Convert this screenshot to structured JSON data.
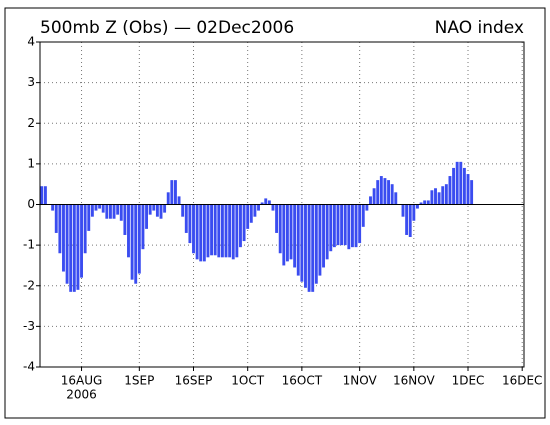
{
  "chart_data": {
    "type": "bar",
    "title": "500mb Z (Obs) — 02Dec2006",
    "title_right": "NAO index",
    "x_sublabel": "2006",
    "color": "#3a4cf0",
    "grid": true,
    "ylim": [
      -4,
      4
    ],
    "yticks": [
      -4,
      -3,
      -2,
      -1,
      0,
      1,
      2,
      3,
      4
    ],
    "categories": [
      null,
      null,
      null,
      null,
      null,
      null,
      null,
      null,
      null,
      null,
      null,
      "16AUG",
      null,
      null,
      null,
      null,
      null,
      null,
      null,
      null,
      null,
      null,
      null,
      null,
      null,
      null,
      null,
      "1SEP",
      null,
      null,
      null,
      null,
      null,
      null,
      null,
      null,
      null,
      null,
      null,
      null,
      null,
      null,
      "16SEP",
      null,
      null,
      null,
      null,
      null,
      null,
      null,
      null,
      null,
      null,
      null,
      null,
      null,
      null,
      "1OCT",
      null,
      null,
      null,
      null,
      null,
      null,
      null,
      null,
      null,
      null,
      null,
      null,
      null,
      null,
      "16OCT",
      null,
      null,
      null,
      null,
      null,
      null,
      null,
      null,
      null,
      null,
      null,
      null,
      null,
      null,
      null,
      "1NOV",
      null,
      null,
      null,
      null,
      null,
      null,
      null,
      null,
      null,
      null,
      null,
      null,
      null,
      null,
      "16NOV",
      null,
      null,
      null,
      null,
      null,
      null,
      null,
      null,
      null,
      null,
      null,
      null,
      null,
      null,
      "1DEC",
      null,
      null,
      null,
      null,
      null,
      null,
      null,
      null,
      null,
      null,
      null,
      null,
      null,
      null,
      "16DEC"
    ],
    "values": [
      0.45,
      0.45,
      0,
      -0.15,
      -0.7,
      -1.2,
      -1.65,
      -1.95,
      -2.15,
      -2.15,
      -2.1,
      -1.8,
      -1.2,
      -0.65,
      -0.3,
      -0.15,
      -0.1,
      -0.2,
      -0.35,
      -0.35,
      -0.35,
      -0.25,
      -0.4,
      -0.75,
      -1.3,
      -1.85,
      -1.95,
      -1.7,
      -1.1,
      -0.6,
      -0.25,
      -0.15,
      -0.3,
      -0.35,
      -0.2,
      0.3,
      0.6,
      0.6,
      0.2,
      -0.3,
      -0.7,
      -0.95,
      -1.2,
      -1.35,
      -1.4,
      -1.4,
      -1.3,
      -1.25,
      -1.25,
      -1.3,
      -1.3,
      -1.3,
      -1.3,
      -1.35,
      -1.3,
      -1.05,
      -0.9,
      -0.6,
      -0.45,
      -0.3,
      -0.15,
      0.05,
      0.15,
      0.1,
      -0.15,
      -0.7,
      -1.2,
      -1.5,
      -1.4,
      -1.35,
      -1.55,
      -1.75,
      -1.9,
      -2.05,
      -2.15,
      -2.15,
      -1.95,
      -1.75,
      -1.55,
      -1.35,
      -1.15,
      -1.05,
      -1.0,
      -1.0,
      -1.0,
      -1.1,
      -1.05,
      -1.05,
      -0.95,
      -0.55,
      -0.15,
      0.2,
      0.4,
      0.6,
      0.7,
      0.65,
      0.6,
      0.5,
      0.3,
      0,
      -0.3,
      -0.75,
      -0.8,
      -0.4,
      -0.1,
      0.05,
      0.1,
      0.1,
      0.35,
      0.4,
      0.3,
      0.45,
      0.5,
      0.7,
      0.9,
      1.05,
      1.05,
      0.9,
      0.75,
      0.6,
      null,
      null,
      null,
      null,
      null,
      null,
      null,
      null,
      null,
      null,
      null,
      null,
      null,
      null
    ]
  }
}
